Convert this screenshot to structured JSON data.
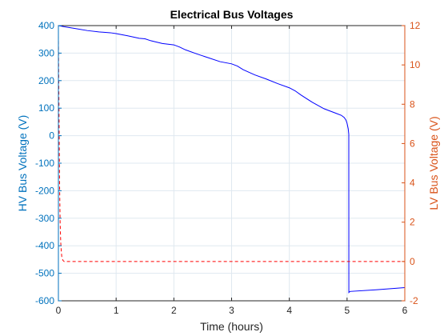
{
  "chart_data": {
    "type": "line",
    "title": "Electrical Bus Voltages",
    "xlabel": "Time (hours)",
    "ylabel_left": "HV Bus Voltage (V)",
    "ylabel_right": "LV Bus Voltage (V)",
    "xlim": [
      0,
      6
    ],
    "ylim_left": [
      -600,
      400
    ],
    "ylim_right": [
      -2,
      12
    ],
    "xticks": [
      "0",
      "1",
      "2",
      "3",
      "4",
      "5",
      "6"
    ],
    "yticks_left": [
      "-600",
      "-500",
      "-400",
      "-300",
      "-200",
      "-100",
      "0",
      "100",
      "200",
      "300",
      "400"
    ],
    "yticks_right": [
      "-2",
      "0",
      "2",
      "4",
      "6",
      "8",
      "10",
      "12"
    ],
    "grid": true,
    "colors": {
      "left": "#0072BD",
      "right": "#D95319",
      "hv_line": "#0000FF",
      "lv_line": "#FF0000"
    },
    "series": [
      {
        "axis": "left",
        "style": "solid",
        "x": [
          0,
          0.1,
          0.3,
          0.5,
          0.7,
          0.9,
          1.0,
          1.2,
          1.4,
          1.5,
          1.6,
          1.8,
          2.0,
          2.1,
          2.2,
          2.4,
          2.6,
          2.8,
          3.0,
          3.1,
          3.2,
          3.4,
          3.6,
          3.8,
          4.0,
          4.1,
          4.2,
          4.4,
          4.6,
          4.8,
          4.9,
          4.95,
          4.98,
          5.0,
          5.02,
          5.03,
          5.031,
          5.05,
          5.5,
          6.0
        ],
        "y": [
          400,
          396,
          389,
          382,
          377,
          374,
          371,
          363,
          354,
          352,
          345,
          335,
          330,
          322,
          312,
          297,
          283,
          269,
          261,
          253,
          240,
          221,
          206,
          189,
          174,
          163,
          148,
          121,
          98,
          82,
          74,
          66,
          57,
          45,
          25,
          5,
          -570,
          -566,
          -560,
          -552
        ]
      },
      {
        "axis": "right",
        "style": "dashed",
        "x": [
          0,
          0.01,
          0.02,
          0.03,
          0.04,
          0.05,
          0.06,
          0.08,
          0.1,
          6.0
        ],
        "y": [
          11.5,
          8.0,
          4.0,
          2.0,
          1.0,
          0.5,
          0.2,
          0.05,
          0,
          0
        ]
      }
    ]
  }
}
